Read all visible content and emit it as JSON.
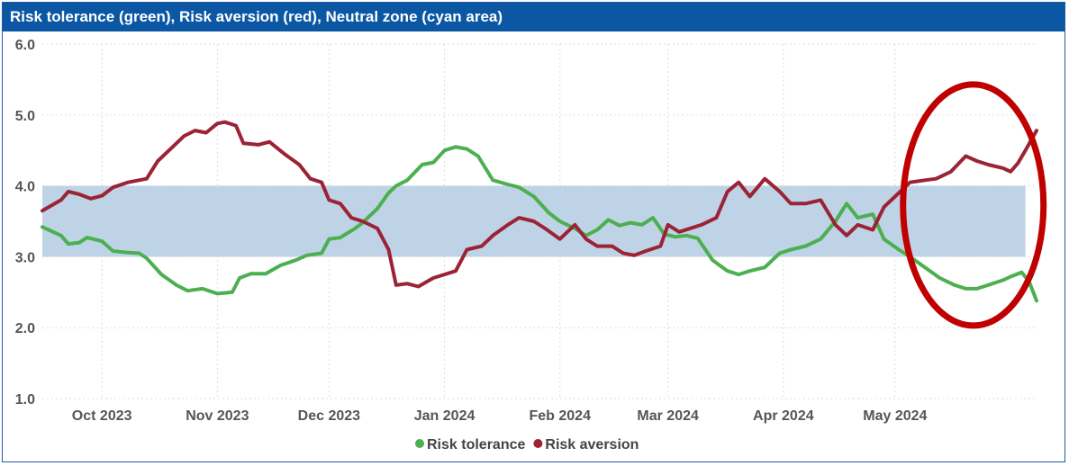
{
  "chart_data": {
    "type": "line",
    "title": "Risk tolerance (green), Risk aversion (red), Neutral zone (cyan area)",
    "ylim": [
      1.0,
      6.0
    ],
    "y_ticks": [
      "1.0",
      "2.0",
      "3.0",
      "4.0",
      "5.0",
      "6.0"
    ],
    "x_ticks": [
      {
        "label": "Oct 2023",
        "date": "2023-10-01"
      },
      {
        "label": "Nov 2023",
        "date": "2023-11-01"
      },
      {
        "label": "Dec 2023",
        "date": "2023-12-01"
      },
      {
        "label": "Jan 2024",
        "date": "2024-01-01"
      },
      {
        "label": "Feb 2024",
        "date": "2024-02-01"
      },
      {
        "label": "Mar 2024",
        "date": "2024-03-01"
      },
      {
        "label": "Apr 2024",
        "date": "2024-04-01"
      },
      {
        "label": "May 2024",
        "date": "2024-05-01"
      }
    ],
    "xlim": [
      "2023-09-15",
      "2024-06-08"
    ],
    "grid": true,
    "legend_position": "bottom",
    "neutral_zone": {
      "y_from": 3.0,
      "y_to": 4.0,
      "x_from": "2023-09-15",
      "x_to": "2024-06-05",
      "color": "#bfd3e6"
    },
    "highlight_ellipse": {
      "center_date": "2024-05-22",
      "center_y": 3.73,
      "color": "#c00000"
    },
    "series": [
      {
        "name": "Risk tolerance",
        "color": "#4caf50",
        "points": [
          [
            "2023-09-15",
            3.42
          ],
          [
            "2023-09-20",
            3.3
          ],
          [
            "2023-09-22",
            3.18
          ],
          [
            "2023-09-25",
            3.2
          ],
          [
            "2023-09-27",
            3.27
          ],
          [
            "2023-10-01",
            3.22
          ],
          [
            "2023-10-04",
            3.08
          ],
          [
            "2023-10-08",
            3.06
          ],
          [
            "2023-10-11",
            3.05
          ],
          [
            "2023-10-13",
            2.98
          ],
          [
            "2023-10-17",
            2.75
          ],
          [
            "2023-10-21",
            2.6
          ],
          [
            "2023-10-24",
            2.52
          ],
          [
            "2023-10-28",
            2.55
          ],
          [
            "2023-11-01",
            2.48
          ],
          [
            "2023-11-05",
            2.5
          ],
          [
            "2023-11-07",
            2.7
          ],
          [
            "2023-11-10",
            2.76
          ],
          [
            "2023-11-14",
            2.76
          ],
          [
            "2023-11-18",
            2.88
          ],
          [
            "2023-11-22",
            2.95
          ],
          [
            "2023-11-25",
            3.02
          ],
          [
            "2023-11-29",
            3.05
          ],
          [
            "2023-12-01",
            3.25
          ],
          [
            "2023-12-04",
            3.27
          ],
          [
            "2023-12-08",
            3.4
          ],
          [
            "2023-12-10",
            3.48
          ],
          [
            "2023-12-14",
            3.68
          ],
          [
            "2023-12-17",
            3.9
          ],
          [
            "2023-12-19",
            4.0
          ],
          [
            "2023-12-22",
            4.08
          ],
          [
            "2023-12-26",
            4.3
          ],
          [
            "2023-12-29",
            4.33
          ],
          [
            "2024-01-01",
            4.5
          ],
          [
            "2024-01-04",
            4.55
          ],
          [
            "2024-01-07",
            4.52
          ],
          [
            "2024-01-10",
            4.42
          ],
          [
            "2024-01-14",
            4.08
          ],
          [
            "2024-01-18",
            4.02
          ],
          [
            "2024-01-21",
            3.98
          ],
          [
            "2024-01-25",
            3.85
          ],
          [
            "2024-01-29",
            3.62
          ],
          [
            "2024-02-01",
            3.5
          ],
          [
            "2024-02-05",
            3.4
          ],
          [
            "2024-02-08",
            3.3
          ],
          [
            "2024-02-11",
            3.38
          ],
          [
            "2024-02-14",
            3.52
          ],
          [
            "2024-02-17",
            3.44
          ],
          [
            "2024-02-20",
            3.48
          ],
          [
            "2024-02-23",
            3.45
          ],
          [
            "2024-02-26",
            3.55
          ],
          [
            "2024-02-29",
            3.32
          ],
          [
            "2024-03-03",
            3.28
          ],
          [
            "2024-03-06",
            3.3
          ],
          [
            "2024-03-09",
            3.26
          ],
          [
            "2024-03-13",
            2.95
          ],
          [
            "2024-03-17",
            2.8
          ],
          [
            "2024-03-20",
            2.75
          ],
          [
            "2024-03-23",
            2.8
          ],
          [
            "2024-03-27",
            2.85
          ],
          [
            "2024-03-31",
            3.05
          ],
          [
            "2024-04-03",
            3.1
          ],
          [
            "2024-04-07",
            3.15
          ],
          [
            "2024-04-11",
            3.25
          ],
          [
            "2024-04-15",
            3.5
          ],
          [
            "2024-04-18",
            3.75
          ],
          [
            "2024-04-21",
            3.55
          ],
          [
            "2024-04-25",
            3.6
          ],
          [
            "2024-04-28",
            3.25
          ],
          [
            "2024-05-02",
            3.1
          ],
          [
            "2024-05-05",
            3.0
          ],
          [
            "2024-05-09",
            2.85
          ],
          [
            "2024-05-13",
            2.7
          ],
          [
            "2024-05-17",
            2.6
          ],
          [
            "2024-05-20",
            2.55
          ],
          [
            "2024-05-23",
            2.55
          ],
          [
            "2024-05-26",
            2.6
          ],
          [
            "2024-05-30",
            2.67
          ],
          [
            "2024-06-01",
            2.72
          ],
          [
            "2024-06-04",
            2.78
          ],
          [
            "2024-06-06",
            2.65
          ],
          [
            "2024-06-08",
            2.38
          ]
        ]
      },
      {
        "name": "Risk aversion",
        "color": "#9b2335",
        "points": [
          [
            "2023-09-15",
            3.65
          ],
          [
            "2023-09-20",
            3.8
          ],
          [
            "2023-09-22",
            3.92
          ],
          [
            "2023-09-25",
            3.88
          ],
          [
            "2023-09-28",
            3.82
          ],
          [
            "2023-10-01",
            3.86
          ],
          [
            "2023-10-04",
            3.98
          ],
          [
            "2023-10-08",
            4.05
          ],
          [
            "2023-10-11",
            4.08
          ],
          [
            "2023-10-13",
            4.1
          ],
          [
            "2023-10-16",
            4.35
          ],
          [
            "2023-10-20",
            4.55
          ],
          [
            "2023-10-23",
            4.7
          ],
          [
            "2023-10-26",
            4.78
          ],
          [
            "2023-10-29",
            4.75
          ],
          [
            "2023-11-01",
            4.88
          ],
          [
            "2023-11-03",
            4.9
          ],
          [
            "2023-11-06",
            4.85
          ],
          [
            "2023-11-08",
            4.6
          ],
          [
            "2023-11-12",
            4.58
          ],
          [
            "2023-11-15",
            4.62
          ],
          [
            "2023-11-19",
            4.45
          ],
          [
            "2023-11-23",
            4.3
          ],
          [
            "2023-11-26",
            4.1
          ],
          [
            "2023-11-29",
            4.05
          ],
          [
            "2023-12-01",
            3.8
          ],
          [
            "2023-12-04",
            3.75
          ],
          [
            "2023-12-07",
            3.55
          ],
          [
            "2023-12-10",
            3.5
          ],
          [
            "2023-12-14",
            3.4
          ],
          [
            "2023-12-17",
            3.1
          ],
          [
            "2023-12-19",
            2.6
          ],
          [
            "2023-12-22",
            2.62
          ],
          [
            "2023-12-25",
            2.58
          ],
          [
            "2023-12-29",
            2.7
          ],
          [
            "2024-01-01",
            2.75
          ],
          [
            "2024-01-04",
            2.8
          ],
          [
            "2024-01-07",
            3.1
          ],
          [
            "2024-01-11",
            3.15
          ],
          [
            "2024-01-14",
            3.3
          ],
          [
            "2024-01-18",
            3.45
          ],
          [
            "2024-01-21",
            3.55
          ],
          [
            "2024-01-25",
            3.5
          ],
          [
            "2024-01-28",
            3.4
          ],
          [
            "2024-02-01",
            3.25
          ],
          [
            "2024-02-05",
            3.45
          ],
          [
            "2024-02-08",
            3.25
          ],
          [
            "2024-02-11",
            3.15
          ],
          [
            "2024-02-15",
            3.15
          ],
          [
            "2024-02-18",
            3.05
          ],
          [
            "2024-02-21",
            3.02
          ],
          [
            "2024-02-24",
            3.08
          ],
          [
            "2024-02-28",
            3.15
          ],
          [
            "2024-03-01",
            3.45
          ],
          [
            "2024-03-04",
            3.35
          ],
          [
            "2024-03-07",
            3.4
          ],
          [
            "2024-03-10",
            3.45
          ],
          [
            "2024-03-14",
            3.55
          ],
          [
            "2024-03-17",
            3.92
          ],
          [
            "2024-03-20",
            4.05
          ],
          [
            "2024-03-23",
            3.85
          ],
          [
            "2024-03-27",
            4.1
          ],
          [
            "2024-03-31",
            3.92
          ],
          [
            "2024-04-03",
            3.75
          ],
          [
            "2024-04-07",
            3.75
          ],
          [
            "2024-04-11",
            3.8
          ],
          [
            "2024-04-15",
            3.45
          ],
          [
            "2024-04-18",
            3.3
          ],
          [
            "2024-04-21",
            3.45
          ],
          [
            "2024-04-25",
            3.38
          ],
          [
            "2024-04-28",
            3.7
          ],
          [
            "2024-05-02",
            3.9
          ],
          [
            "2024-05-05",
            4.05
          ],
          [
            "2024-05-09",
            4.08
          ],
          [
            "2024-05-12",
            4.1
          ],
          [
            "2024-05-16",
            4.2
          ],
          [
            "2024-05-20",
            4.42
          ],
          [
            "2024-05-23",
            4.35
          ],
          [
            "2024-05-26",
            4.3
          ],
          [
            "2024-05-30",
            4.25
          ],
          [
            "2024-06-01",
            4.2
          ],
          [
            "2024-06-03",
            4.32
          ],
          [
            "2024-06-05",
            4.5
          ],
          [
            "2024-06-08",
            4.78
          ]
        ]
      }
    ]
  }
}
